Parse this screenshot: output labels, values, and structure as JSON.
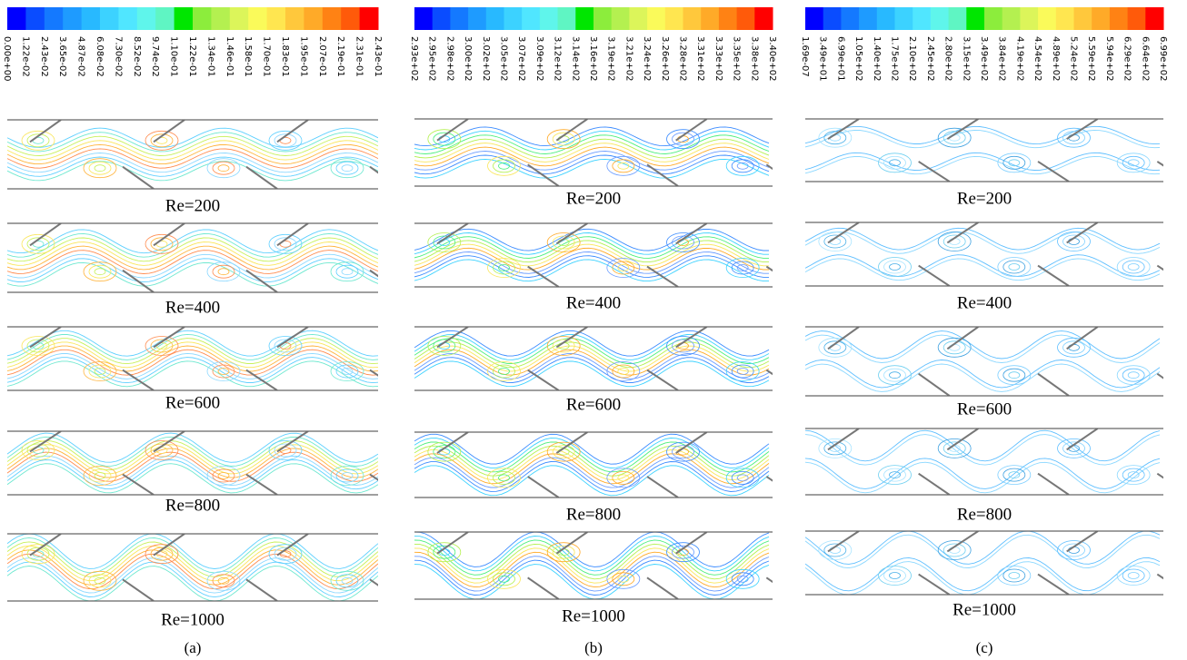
{
  "panels": [
    {
      "colorbar": {
        "ticks": [
          "0.00e+00",
          "1.22e-02",
          "2.43e-02",
          "3.65e-02",
          "4.87e-02",
          "6.08e-02",
          "7.30e-02",
          "8.52e-02",
          "9.74e-02",
          "1.10e-01",
          "1.22e-01",
          "1.34e-01",
          "1.46e-01",
          "1.58e-01",
          "1.70e-01",
          "1.83e-01",
          "1.95e-01",
          "2.07e-01",
          "2.19e-01",
          "2.31e-01",
          "2.43e-01"
        ]
      },
      "plots": [
        "Re=200",
        "Re=400",
        "Re=600",
        "Re=800",
        "Re=1000"
      ],
      "caption": "(a)"
    },
    {
      "colorbar": {
        "ticks": [
          "2.93e+02",
          "2.95e+02",
          "2.98e+02",
          "3.00e+02",
          "3.02e+02",
          "3.05e+02",
          "3.07e+02",
          "3.09e+02",
          "3.12e+02",
          "3.14e+02",
          "3.16e+02",
          "3.19e+02",
          "3.21e+02",
          "3.24e+02",
          "3.26e+02",
          "3.28e+02",
          "3.31e+02",
          "3.33e+02",
          "3.35e+02",
          "3.38e+02",
          "3.40e+02"
        ]
      },
      "plots": [
        "Re=200",
        "Re=400",
        "Re=600",
        "Re=800",
        "Re=1000"
      ],
      "caption": "(b)"
    },
    {
      "colorbar": {
        "ticks": [
          "1.69e-07",
          "3.49e+01",
          "6.99e+01",
          "1.05e+02",
          "1.40e+02",
          "1.75e+02",
          "2.10e+02",
          "2.45e+02",
          "2.80e+02",
          "3.15e+02",
          "3.49e+02",
          "3.84e+02",
          "4.19e+02",
          "4.54e+02",
          "4.89e+02",
          "5.24e+02",
          "5.59e+02",
          "5.94e+02",
          "6.29e+02",
          "6.64e+02",
          "6.99e+02"
        ]
      },
      "plots": [
        "Re=200",
        "Re=400",
        "Re=600",
        "Re=800",
        "Re=1000"
      ],
      "caption": "(c)"
    }
  ]
}
